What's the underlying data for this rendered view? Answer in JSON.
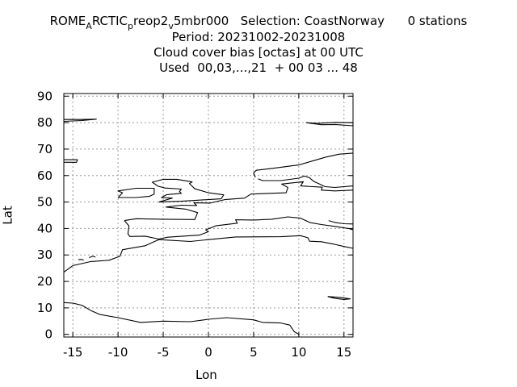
{
  "title": {
    "line1_parts": [
      "ROME",
      "A",
      "RCTIC",
      "p",
      "reop2",
      "v",
      "5mbr000   Selection: CoastNorway      0 stations"
    ],
    "line2": "Period: 20231002-20231008",
    "line3": "Cloud cover bias [octas] at  00 UTC",
    "line4": "Used  00,03,...,21  + 00 03 ... 48"
  },
  "chart_data": {
    "type": "map",
    "title": "Cloud cover bias [octas] at  00 UTC",
    "xlabel": "Lon",
    "ylabel": "Lat",
    "xlim": [
      -16,
      16
    ],
    "ylim": [
      -1,
      91
    ],
    "x_ticks": [
      -15,
      -10,
      -5,
      0,
      5,
      10,
      15
    ],
    "y_ticks": [
      0,
      10,
      20,
      30,
      40,
      50,
      60,
      70,
      80,
      90
    ],
    "grid": true,
    "stations": 0,
    "coastlines": [
      [
        [
          -16,
          81.2
        ],
        [
          -14,
          81.2
        ],
        [
          -12.4,
          81.3
        ],
        [
          -14,
          80.8
        ],
        [
          -16,
          80.5
        ]
      ],
      [
        [
          -16,
          66
        ],
        [
          -14.5,
          66
        ],
        [
          -14.6,
          65
        ],
        [
          -16,
          65
        ]
      ],
      [
        [
          -16,
          23.5
        ],
        [
          -15,
          26
        ],
        [
          -13,
          27.5
        ],
        [
          -11,
          28
        ],
        [
          -9.8,
          29.5
        ],
        [
          -9.5,
          32
        ],
        [
          -7,
          33.5
        ],
        [
          -5.5,
          35.8
        ],
        [
          -2,
          35.1
        ],
        [
          0,
          35.8
        ],
        [
          3,
          36.8
        ],
        [
          8,
          36.9
        ],
        [
          10.2,
          37.3
        ],
        [
          11,
          36.5
        ],
        [
          11.2,
          35.2
        ],
        [
          12.5,
          35
        ],
        [
          14,
          34
        ],
        [
          15,
          33.2
        ],
        [
          16,
          32.5
        ]
      ],
      [
        [
          -16,
          12
        ],
        [
          -15,
          11.8
        ],
        [
          -14,
          11
        ],
        [
          -13,
          9
        ],
        [
          -12,
          7.5
        ],
        [
          -10,
          6.3
        ],
        [
          -7.5,
          4.5
        ],
        [
          -5,
          5
        ],
        [
          -2,
          4.8
        ],
        [
          0,
          5.7
        ],
        [
          2,
          6.3
        ],
        [
          5,
          5.5
        ],
        [
          6,
          4.5
        ],
        [
          8,
          4.3
        ],
        [
          9,
          3.5
        ],
        [
          9.5,
          1
        ],
        [
          10,
          0
        ]
      ],
      [
        [
          -9.3,
          43
        ],
        [
          -8.8,
          41
        ],
        [
          -8.9,
          38
        ],
        [
          -8.7,
          37
        ],
        [
          -7,
          37.1
        ],
        [
          -5.5,
          36
        ],
        [
          -4.5,
          36.7
        ],
        [
          -1,
          37.5
        ],
        [
          0,
          38.8
        ],
        [
          -0.3,
          39.5
        ],
        [
          0.8,
          41
        ],
        [
          3.2,
          42
        ],
        [
          3,
          43.3
        ],
        [
          5,
          43.2
        ],
        [
          7,
          43.5
        ],
        [
          8.8,
          44.4
        ],
        [
          10.2,
          43.9
        ],
        [
          11.2,
          42.3
        ],
        [
          12.5,
          41.5
        ],
        [
          14,
          40.8
        ],
        [
          15.5,
          40
        ],
        [
          16,
          39.5
        ]
      ],
      [
        [
          -9.3,
          43
        ],
        [
          -8,
          43.7
        ],
        [
          -5,
          43.5
        ],
        [
          -1.5,
          43.4
        ],
        [
          -1.2,
          46
        ],
        [
          -2.5,
          47.3
        ],
        [
          -4.7,
          48.1
        ],
        [
          -3,
          48.8
        ],
        [
          -1.3,
          48.7
        ],
        [
          -1.6,
          49.7
        ],
        [
          0.2,
          49.6
        ],
        [
          1.8,
          50.9
        ],
        [
          4,
          51.5
        ],
        [
          4.7,
          53
        ],
        [
          8.6,
          53.5
        ],
        [
          8.8,
          55.5
        ],
        [
          8.1,
          56.8
        ],
        [
          10.5,
          57.7
        ],
        [
          10.2,
          56.1
        ],
        [
          12.6,
          55.6
        ],
        [
          12.5,
          54.5
        ],
        [
          14,
          54.2
        ],
        [
          16,
          54.5
        ]
      ],
      [
        [
          -5.5,
          50
        ],
        [
          -3,
          50.3
        ],
        [
          1.4,
          51.2
        ],
        [
          1.7,
          52.7
        ],
        [
          0,
          53.5
        ],
        [
          -1.5,
          55
        ],
        [
          -2.1,
          57
        ],
        [
          -1.8,
          57.6
        ],
        [
          -3.5,
          58.6
        ],
        [
          -5,
          58.6
        ],
        [
          -6.2,
          57.5
        ],
        [
          -5.6,
          56
        ],
        [
          -4.8,
          55.3
        ],
        [
          -3,
          54.9
        ],
        [
          -3.2,
          54
        ],
        [
          -3,
          53.3
        ],
        [
          -4.6,
          52.8
        ],
        [
          -5.2,
          51.7
        ],
        [
          -4,
          51.5
        ],
        [
          -5.5,
          50
        ]
      ],
      [
        [
          -10,
          51.7
        ],
        [
          -9.5,
          53.5
        ],
        [
          -10,
          54.2
        ],
        [
          -8,
          55.2
        ],
        [
          -6,
          55.2
        ],
        [
          -6,
          53
        ],
        [
          -6.5,
          52.2
        ],
        [
          -8,
          51.7
        ],
        [
          -10,
          51.7
        ]
      ],
      [
        [
          5.2,
          59.3
        ],
        [
          5,
          61
        ],
        [
          5.3,
          62
        ],
        [
          7,
          62.7
        ],
        [
          10,
          64
        ],
        [
          11,
          65
        ],
        [
          13,
          67
        ],
        [
          14.5,
          68.1
        ],
        [
          16,
          68.5
        ]
      ],
      [
        [
          16,
          56.1
        ],
        [
          14,
          55.5
        ],
        [
          12.9,
          55.8
        ],
        [
          12.3,
          56.8
        ],
        [
          11.7,
          57.7
        ],
        [
          11.3,
          58.8
        ],
        [
          11.2,
          59.2
        ],
        [
          10.6,
          59.8
        ],
        [
          10,
          59
        ],
        [
          8,
          58.1
        ],
        [
          6,
          58.1
        ],
        [
          5.5,
          58.8
        ]
      ],
      [
        [
          10.8,
          80
        ],
        [
          12.5,
          79.2
        ],
        [
          14,
          79.3
        ],
        [
          16,
          78.8
        ],
        [
          16,
          80
        ],
        [
          14,
          80.1
        ],
        [
          12,
          79.7
        ],
        [
          10.8,
          80
        ]
      ],
      [
        [
          13.3,
          43
        ],
        [
          14,
          42.3
        ],
        [
          15,
          41.8
        ],
        [
          16,
          41.7
        ]
      ],
      [
        [
          13.2,
          14.3
        ],
        [
          14,
          13.6
        ],
        [
          15,
          13.2
        ],
        [
          15.7,
          13.4
        ],
        [
          14.5,
          14
        ],
        [
          13.2,
          14.3
        ]
      ],
      [
        [
          -14.4,
          28.2
        ],
        [
          -14,
          28.3
        ],
        [
          -13.8,
          28
        ]
      ],
      [
        [
          -13.2,
          29
        ],
        [
          -12.8,
          29.5
        ],
        [
          -12.5,
          29.2
        ]
      ]
    ]
  }
}
